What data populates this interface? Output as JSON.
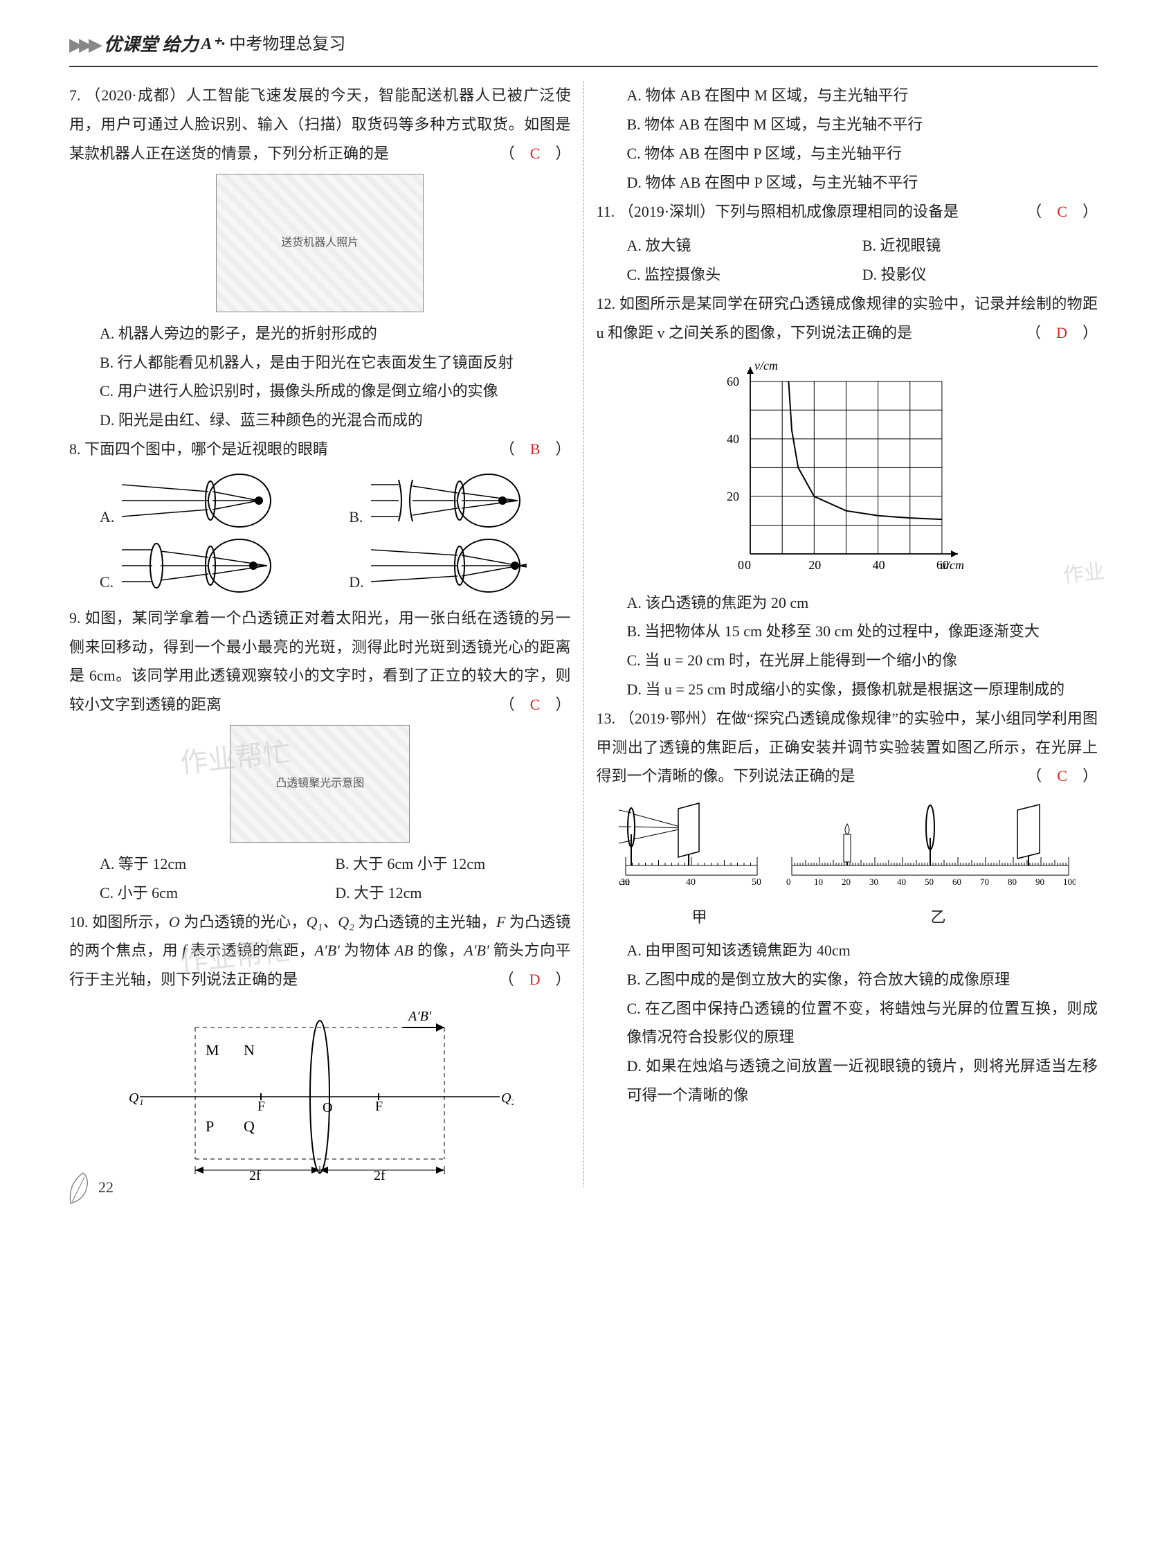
{
  "header": {
    "brand": "优课堂 给力",
    "aplus": "A⁺·",
    "subtitle": "中考物理总复习"
  },
  "page_number": "22",
  "q7": {
    "num": "7.",
    "stem": "（2020·成都）人工智能飞速发展的今天，智能配送机器人已被广泛使用，用户可通过人脸识别、输入（扫描）取货码等多种方式取货。如图是某款机器人正在送货的情景，下列分析正确的是",
    "answer": "C",
    "figure_label": "送货机器人照片",
    "A": "A. 机器人旁边的影子，是光的折射形成的",
    "B": "B. 行人都能看见机器人，是由于阳光在它表面发生了镜面反射",
    "C": "C. 用户进行人脸识别时，摄像头所成的像是倒立缩小的实像",
    "D": "D. 阳光是由红、绿、蓝三种颜色的光混合而成的"
  },
  "q8": {
    "num": "8.",
    "stem": "下面四个图中，哪个是近视眼的眼睛",
    "answer": "B",
    "A": "A.",
    "B": "B.",
    "C": "C.",
    "D": "D."
  },
  "q9": {
    "num": "9.",
    "stem": "如图，某同学拿着一个凸透镜正对着太阳光，用一张白纸在透镜的另一侧来回移动，得到一个最小最亮的光斑，测得此时光斑到透镜光心的距离是 6cm。该同学用此透镜观察较小的文字时，看到了正立的较大的字，则较小文字到透镜的距离",
    "answer": "C",
    "figure_label": "凸透镜聚光示意图",
    "A": "A. 等于 12cm",
    "B": "B. 大于 6cm 小于 12cm",
    "C": "C. 小于 6cm",
    "D": "D. 大于 12cm"
  },
  "q10": {
    "num": "10.",
    "stem_a": "如图所示，",
    "stem_b": " 为凸透镜的光心，",
    "stem_c": " 为凸透镜的主光轴，",
    "stem_d": " 为凸透镜的两个焦点，用 ",
    "stem_e": " 表示透镜的焦距，",
    "stem_f": " 为物体 ",
    "stem_g": " 的像，",
    "stem_h": " 箭头方向平行于主光轴，则下列说法正确的是",
    "O": "O",
    "Q12": "Q₁、Q₂",
    "F": "F",
    "f": "f",
    "ApBp": "A′B′",
    "AB": "AB",
    "answer": "D",
    "diagram": {
      "labels": {
        "M": "M",
        "N": "N",
        "P": "P",
        "Q": "Q",
        "Q1": "Q₁",
        "Q2": "Q₂",
        "F": "F",
        "O": "O",
        "ApBp": "A′B′",
        "tf": "2f"
      },
      "colors": {
        "stroke": "#000",
        "dash": "#000"
      }
    },
    "options_header": "",
    "A": "A. 物体 AB 在图中 M 区域，与主光轴平行",
    "B": "B. 物体 AB 在图中 M 区域，与主光轴不平行",
    "C": "C. 物体 AB 在图中 P 区域，与主光轴平行",
    "D": "D. 物体 AB 在图中 P 区域，与主光轴不平行"
  },
  "q11": {
    "num": "11.",
    "stem": "（2019·深圳）下列与照相机成像原理相同的设备是",
    "answer": "C",
    "A": "A. 放大镜",
    "B": "B. 近视眼镜",
    "C": "C. 监控摄像头",
    "D": "D. 投影仪"
  },
  "q12": {
    "num": "12.",
    "stem": "如图所示是某同学在研究凸透镜成像规律的实验中，记录并绘制的物距 u 和像距 v 之间关系的图像，下列说法正确的是",
    "answer": "D",
    "chart": {
      "type": "line",
      "xlabel": "u/cm",
      "ylabel": "v/cm",
      "xlim": [
        0,
        65
      ],
      "ylim": [
        0,
        65
      ],
      "xticks": [
        0,
        10,
        20,
        30,
        40,
        50,
        60
      ],
      "yticks": [
        0,
        10,
        20,
        30,
        40,
        50,
        60
      ],
      "xtick_labels": [
        "0",
        "",
        "20",
        "",
        "40",
        "",
        "60"
      ],
      "ytick_labels": [
        "",
        "",
        "20",
        "",
        "40",
        "",
        "60"
      ],
      "grid_color": "#000",
      "curve_points": [
        [
          12,
          60
        ],
        [
          13,
          43
        ],
        [
          15,
          30
        ],
        [
          20,
          20
        ],
        [
          30,
          15
        ],
        [
          40,
          13.3
        ],
        [
          50,
          12.5
        ],
        [
          60,
          12
        ]
      ],
      "line_color": "#000",
      "background_color": "#ffffff",
      "line_width": 2
    },
    "A": "A. 该凸透镜的焦距为 20 cm",
    "B": "B. 当把物体从 15 cm 处移至 30 cm 处的过程中，像距逐渐变大",
    "C": "C. 当 u = 20 cm 时，在光屏上能得到一个缩小的像",
    "D": "D. 当 u = 25 cm 时成缩小的实像，摄像机就是根据这一原理制成的",
    "watermark": "作业"
  },
  "q13": {
    "num": "13.",
    "stem": "（2019·鄂州）在做“探究凸透镜成像规律”的实验中，某小组同学利用图甲测出了透镜的焦距后，正确安装并调节实验装置如图乙所示，在光屏上得到一个清晰的像。下列说法正确的是",
    "answer": "C",
    "diagram": {
      "jia_label": "甲",
      "yi_label": "乙",
      "jia_ruler": {
        "min": 30,
        "max": 50,
        "step": 10,
        "unit": "cm"
      },
      "yi_ruler": {
        "min": 0,
        "max": 100,
        "step": 10,
        "unit": ""
      },
      "yi_positions": {
        "candle": 20,
        "lens": 50,
        "screen": 85
      }
    },
    "A": "A. 由甲图可知该透镜焦距为 40cm",
    "B": "B. 乙图中成的是倒立放大的实像，符合放大镜的成像原理",
    "C": "C. 在乙图中保持凸透镜的位置不变，将蜡烛与光屏的位置互换，则成像情况符合投影仪的原理",
    "D": "D. 如果在烛焰与透镜之间放置一近视眼镜的镜片，则将光屏适当左移可得一个清晰的像"
  }
}
